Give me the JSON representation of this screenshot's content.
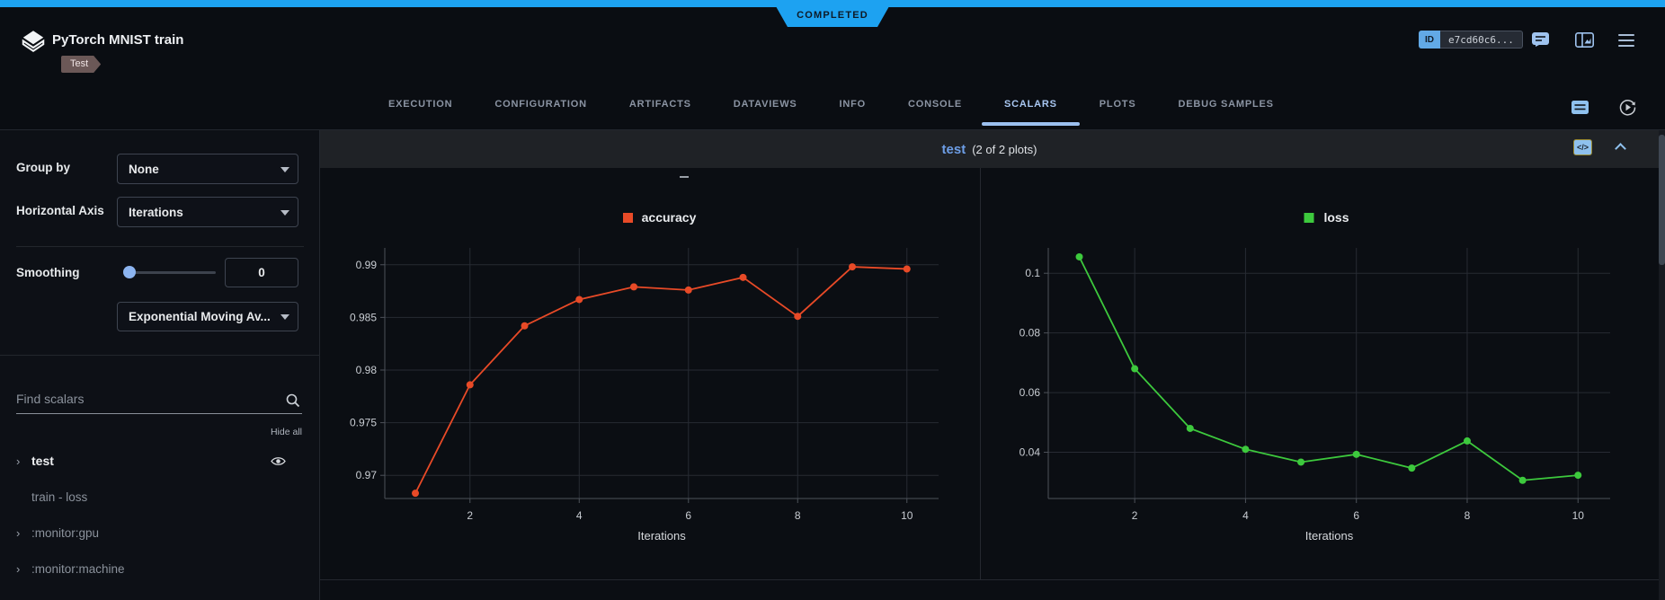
{
  "colors": {
    "accent_blue": "#1da2f1",
    "active_tab": "#a9c7f2",
    "series_accuracy": "#e84a27",
    "series_loss": "#3dc93d"
  },
  "chart_style": {
    "grid": "#272b33",
    "axis": "#4d525a",
    "tick": "#c9cdd3",
    "label": "#d5d8dc",
    "legend": "#e9ebee"
  },
  "header": {
    "status_badge": "COMPLETED",
    "title": "PyTorch MNIST train",
    "project_tag": "Test",
    "id_chip": {
      "label": "ID",
      "value": "e7cd60c6..."
    }
  },
  "tabs": {
    "items": [
      "EXECUTION",
      "CONFIGURATION",
      "ARTIFACTS",
      "DATAVIEWS",
      "INFO",
      "CONSOLE",
      "SCALARS",
      "PLOTS",
      "DEBUG SAMPLES"
    ],
    "active": "SCALARS"
  },
  "sidebar": {
    "group_by": {
      "label": "Group by",
      "value": "None"
    },
    "horizontal_axis": {
      "label": "Horizontal Axis",
      "value": "Iterations"
    },
    "smoothing": {
      "label": "Smoothing",
      "value": "0",
      "type_value": "Exponential Moving Av..."
    },
    "search": {
      "placeholder": "Find scalars"
    },
    "hide_all": "Hide all",
    "metrics": [
      {
        "label": "test",
        "expandable": true,
        "visible": true
      },
      {
        "label": "train - loss",
        "expandable": false,
        "visible": false
      },
      {
        "label": ":monitor:gpu",
        "expandable": true,
        "visible": false
      },
      {
        "label": ":monitor:machine",
        "expandable": true,
        "visible": false
      }
    ]
  },
  "scalars": {
    "group_title": "test",
    "group_count": "(2 of 2 plots)"
  },
  "chart_data": [
    {
      "type": "line",
      "title": "accuracy",
      "series": [
        {
          "name": "accuracy",
          "color": "#e84a27",
          "x": [
            1,
            2,
            3,
            4,
            5,
            6,
            7,
            8,
            9,
            10
          ],
          "values": [
            0.9683,
            0.9786,
            0.9842,
            0.9867,
            0.9879,
            0.9876,
            0.9888,
            0.9851,
            0.9898,
            0.9896
          ]
        }
      ],
      "xlabel": "Iterations",
      "x_ticks": [
        2,
        4,
        6,
        8,
        10
      ],
      "y_ticks": [
        "0.97",
        "0.975",
        "0.98",
        "0.985",
        "0.99"
      ],
      "xlim": [
        0.44,
        10.58
      ],
      "ylim": [
        0.9678,
        0.9916
      ],
      "grid": true,
      "legend_position": "top-center"
    },
    {
      "type": "line",
      "title": "loss",
      "series": [
        {
          "name": "loss",
          "color": "#3dc93d",
          "x": [
            1,
            2,
            3,
            4,
            5,
            6,
            7,
            8,
            9,
            10
          ],
          "values": [
            0.1055,
            0.068,
            0.048,
            0.041,
            0.0367,
            0.0393,
            0.0347,
            0.0438,
            0.0306,
            0.0323
          ]
        }
      ],
      "xlabel": "Iterations",
      "x_ticks": [
        2,
        4,
        6,
        8,
        10
      ],
      "y_ticks": [
        "0.04",
        "0.06",
        "0.08",
        "0.1"
      ],
      "xlim": [
        0.44,
        10.58
      ],
      "ylim": [
        0.0245,
        0.1085
      ],
      "grid": true,
      "legend_position": "top-center"
    }
  ]
}
